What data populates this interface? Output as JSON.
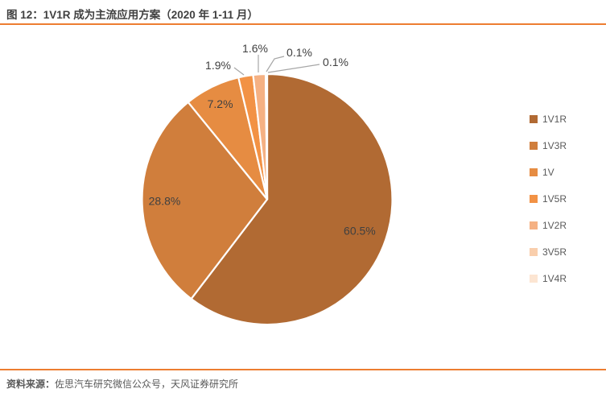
{
  "header": {
    "title": "图 12：1V1R 成为主流应用方案（2020 年 1-11 月）"
  },
  "footer": {
    "source_prefix": "资料来源：",
    "source_text": "佐思汽车研究微信公众号，天风证券研究所"
  },
  "chart_data": {
    "type": "pie",
    "title": "图 12：1V1R 成为主流应用方案（2020 年 1-11 月）",
    "categories": [
      "1V1R",
      "1V3R",
      "1V",
      "1V5R",
      "1V2R",
      "3V5R",
      "1V4R"
    ],
    "values": [
      60.5,
      28.8,
      7.2,
      1.9,
      1.6,
      0.1,
      0.1
    ],
    "labels": [
      "60.5%",
      "28.8%",
      "7.2%",
      "1.9%",
      "1.6%",
      "0.1%",
      "0.1%"
    ],
    "colors": [
      "#B16A33",
      "#D07E3C",
      "#E68C42",
      "#F29245",
      "#F5B183",
      "#F9CEAC",
      "#FCE5D2"
    ],
    "start_angle_deg": 0,
    "direction": "clockwise",
    "legend_position": "right",
    "accent_color": "#ED7D31",
    "label_color": "#404040",
    "leader_line_color": "#A6A6A6",
    "legend_text_color": "#595959"
  }
}
